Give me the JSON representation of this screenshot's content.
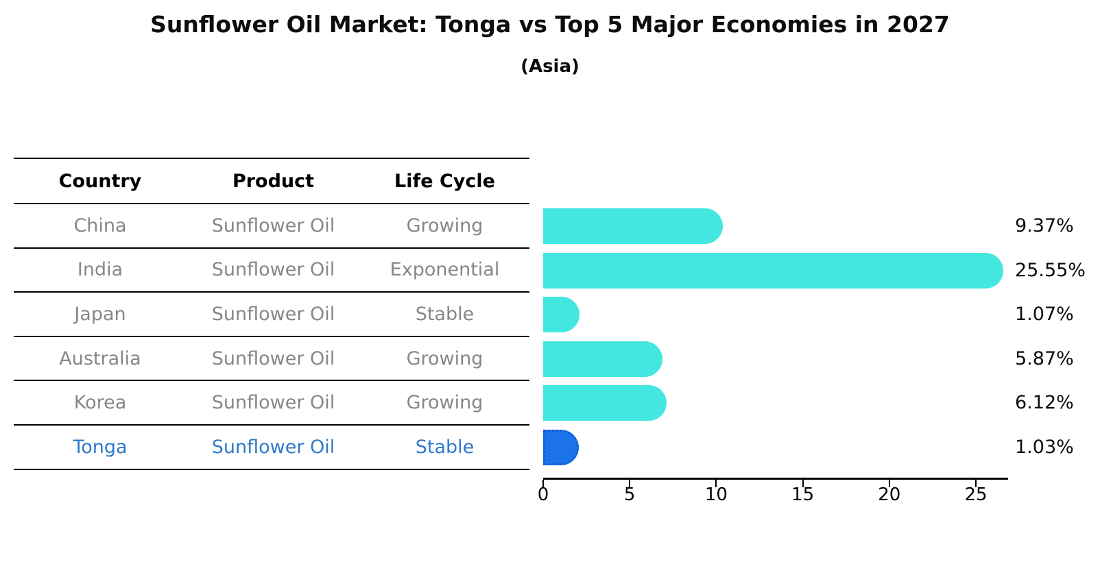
{
  "title": "Sunflower Oil Market: Tonga vs Top 5 Major Economies in 2027",
  "subtitle": "(Asia)",
  "table": {
    "headers": [
      "Country",
      "Product",
      "Life Cycle"
    ],
    "rows": [
      {
        "country": "China",
        "product": "Sunflower Oil",
        "life_cycle": "Growing",
        "highlight": false
      },
      {
        "country": "India",
        "product": "Sunflower Oil",
        "life_cycle": "Exponential",
        "highlight": false
      },
      {
        "country": "Japan",
        "product": "Sunflower Oil",
        "life_cycle": "Stable",
        "highlight": false
      },
      {
        "country": "Australia",
        "product": "Sunflower Oil",
        "life_cycle": "Growing",
        "highlight": false
      },
      {
        "country": "Korea",
        "product": "Sunflower Oil",
        "life_cycle": "Growing",
        "highlight": false
      },
      {
        "country": "Tonga",
        "product": "Sunflower Oil",
        "life_cycle": "Stable",
        "highlight": true
      }
    ]
  },
  "chart_data": {
    "type": "bar",
    "orientation": "horizontal",
    "title": "Sunflower Oil Market: Tonga vs Top 5 Major Economies in 2027",
    "subtitle": "(Asia)",
    "categories": [
      "China",
      "India",
      "Japan",
      "Australia",
      "Korea",
      "Tonga"
    ],
    "values": [
      9.37,
      25.55,
      1.07,
      5.87,
      6.12,
      1.03
    ],
    "value_labels": [
      "9.37%",
      "25.55%",
      "1.07%",
      "5.87%",
      "6.12%",
      "1.03%"
    ],
    "xlabel": "",
    "ylabel": "",
    "x_ticks": [
      0,
      5,
      10,
      15,
      20,
      25
    ],
    "x_tick_labels": [
      "0",
      "5",
      "10",
      "15",
      "20",
      "25"
    ],
    "xlim": [
      0,
      26.9
    ],
    "grid": false,
    "legend": false,
    "highlight_index": 5,
    "colors": {
      "bar": "#44e7e0",
      "highlight_bar": "#1c73e8",
      "highlight_edge": "#0f5fd7",
      "highlight_text": "#2e7bcb",
      "row_text": "#878787",
      "axis": "#000000"
    }
  }
}
